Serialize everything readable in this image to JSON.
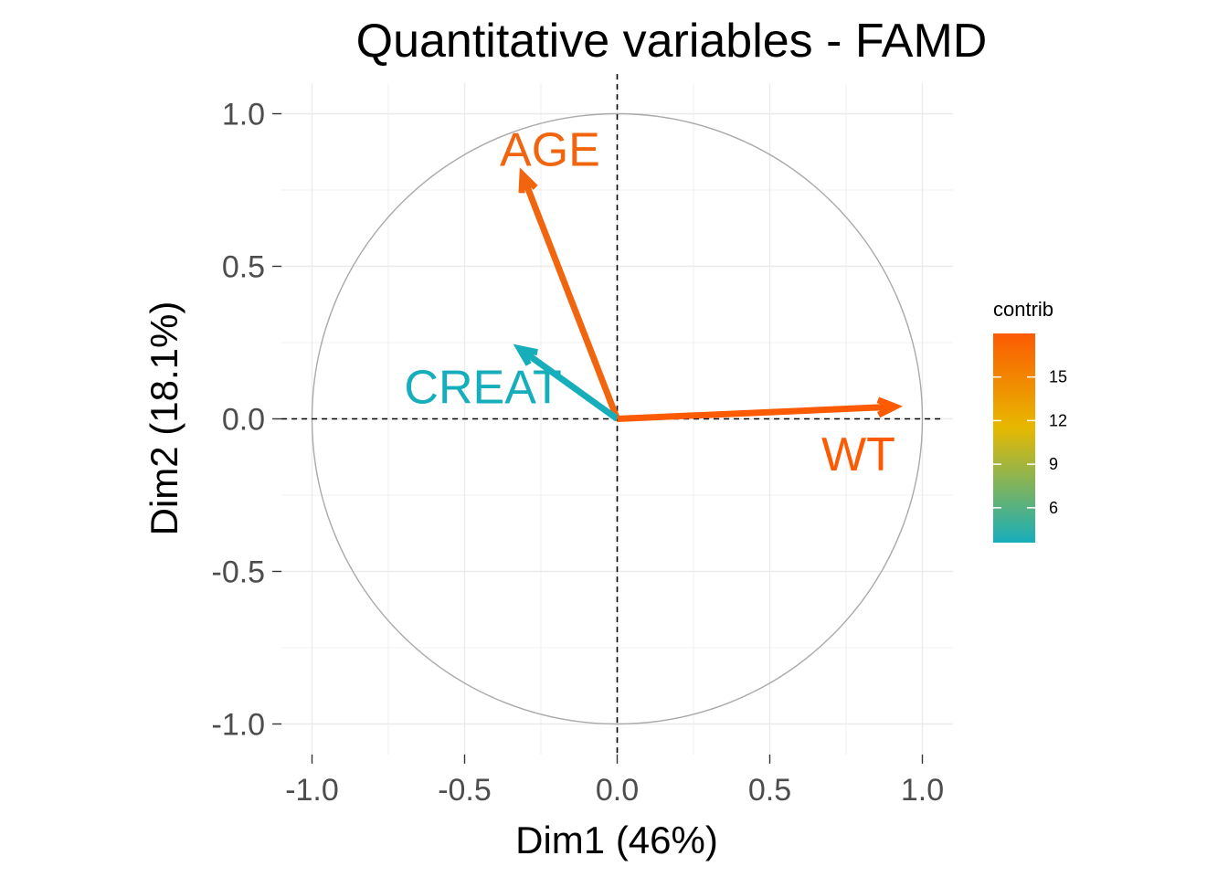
{
  "chart_data": {
    "type": "scatter",
    "subtype": "correlation-circle",
    "title": "Quantitative variables - FAMD",
    "xlabel": "Dim1 (46%)",
    "ylabel": "Dim2 (18.1%)",
    "xlim": [
      -1.1,
      1.1
    ],
    "ylim": [
      -1.1,
      1.1
    ],
    "x_ticks": [
      -1.0,
      -0.5,
      0.0,
      0.5,
      1.0
    ],
    "y_ticks": [
      -1.0,
      -0.5,
      0.0,
      0.5,
      1.0
    ],
    "x_tick_labels": [
      "-1.0",
      "-0.5",
      "0.0",
      "0.5",
      "1.0"
    ],
    "y_tick_labels": [
      "-1.0",
      "-0.5",
      "0.0",
      "0.5",
      "1.0"
    ],
    "unit_circle": true,
    "reference_lines": {
      "x": 0,
      "y": 0,
      "style": "dashed"
    },
    "variables": [
      {
        "name": "AGE",
        "x": -0.31,
        "y": 0.8,
        "contrib": 16.5,
        "color": "#f2650f"
      },
      {
        "name": "CREAT",
        "x": -0.32,
        "y": 0.23,
        "contrib": 3.6,
        "color": "#17aebb"
      },
      {
        "name": "WT",
        "x": 0.91,
        "y": 0.04,
        "contrib": 18.0,
        "color": "#fc5a03"
      }
    ],
    "legend": {
      "title": "contrib",
      "position": "right",
      "ticks": [
        6,
        9,
        12,
        15
      ],
      "tick_labels": [
        "6",
        "9",
        "12",
        "15"
      ],
      "range": [
        3.6,
        18.0
      ],
      "gradient": [
        "#17aebb",
        "#e7b800",
        "#fc4e07"
      ]
    }
  }
}
